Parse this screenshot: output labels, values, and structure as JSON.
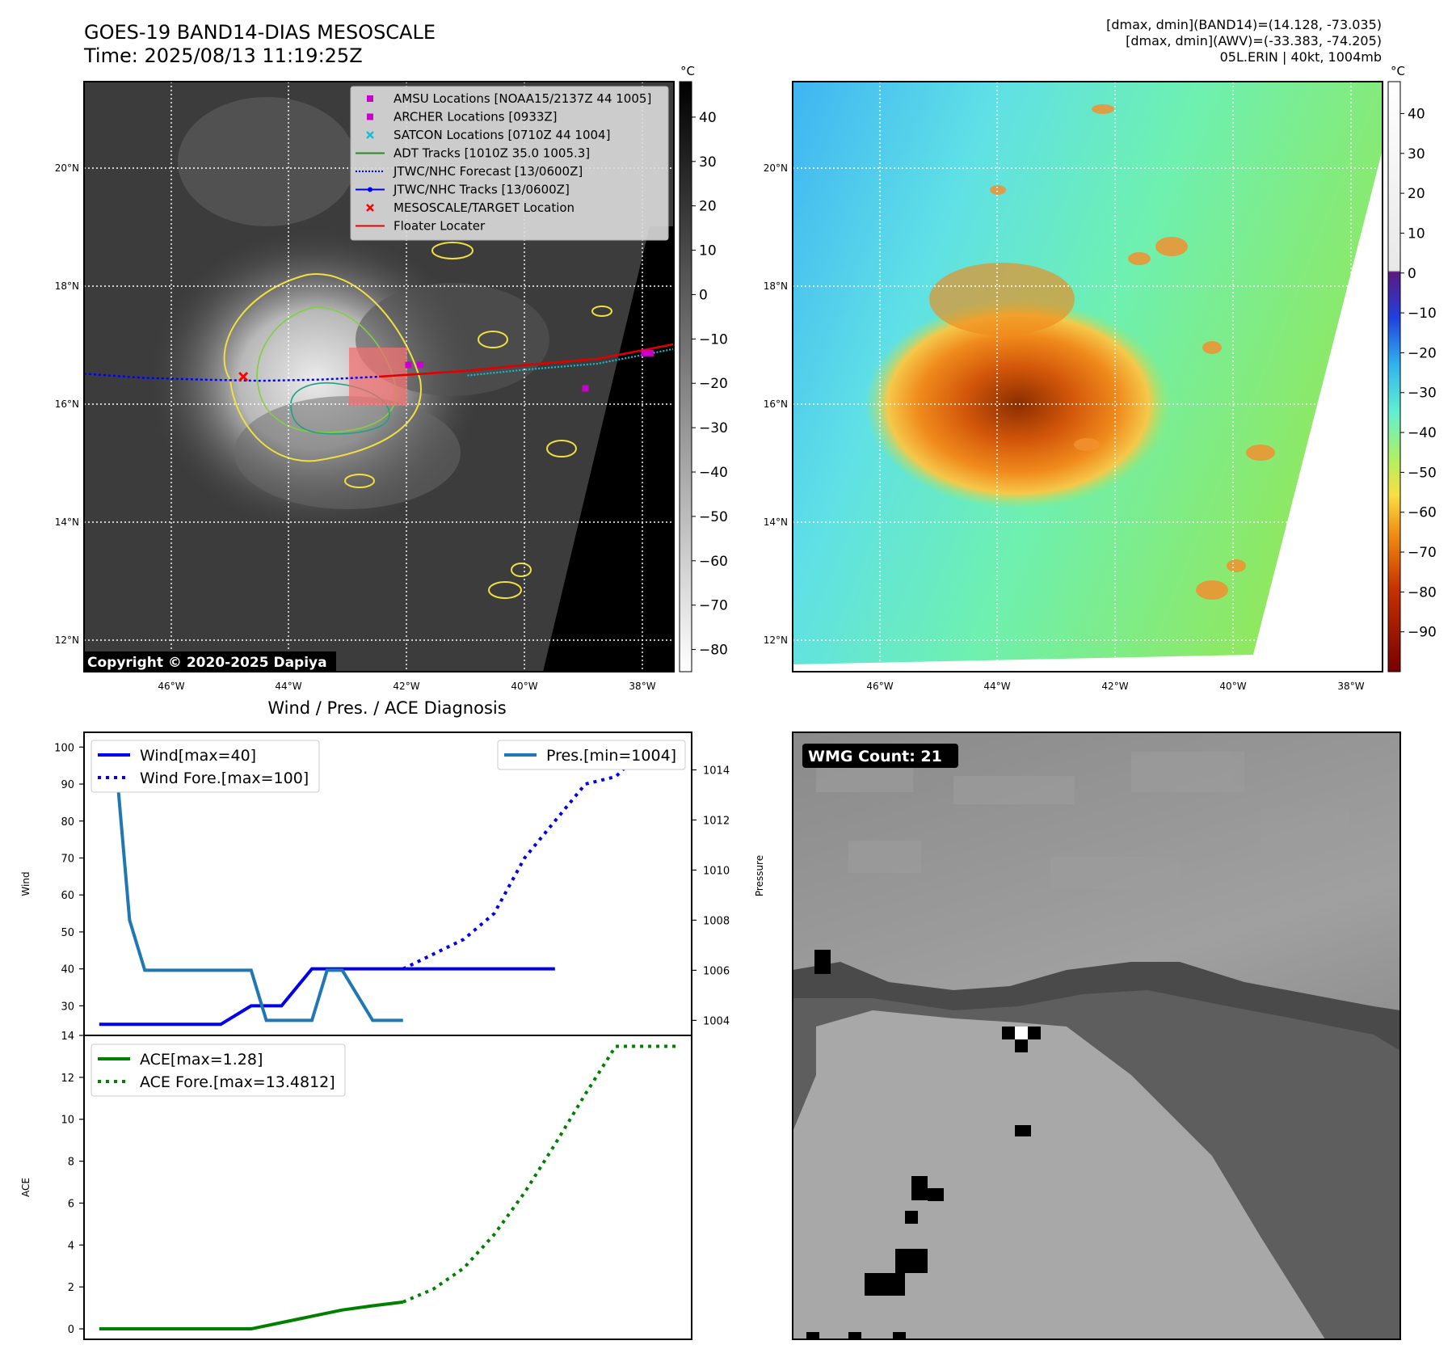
{
  "header": {
    "title_line1": "GOES-19 BAND14-DIAS MESOSCALE",
    "title_line2": "Time: 2025/08/13 11:19:25Z",
    "info_line1": "[dmax, dmin](BAND14)=(14.128, -73.035)",
    "info_line2": "[dmax, dmin](AWV)=(-33.383, -74.205)",
    "info_line3": "05L.ERIN | 40kt, 1004mb"
  },
  "copyright": "Copyright © 2020-2025 Dapiya",
  "wmg_count": "WMG Count: 21",
  "diag_title": "Wind / Pres. / ACE Diagnosis",
  "colors": {
    "wind": "#0000ee",
    "pressure": "#1f77b4",
    "ace": "#008000",
    "amsu": "#cc00cc",
    "archer": "#cc00cc",
    "satcon": "#17becf",
    "adt": "#228b22",
    "jtwc": "#0000ee",
    "target": "#ff0000",
    "floater": "#ee0000"
  },
  "chart_data": [
    {
      "id": "band14_ir",
      "type": "heatmap",
      "title": "GOES-19 BAND14-DIAS MESOSCALE",
      "colorbar_unit": "°C",
      "colorbar_ticks": [
        "40",
        "30",
        "20",
        "10",
        "0",
        "−10",
        "−20",
        "−30",
        "−40",
        "−50",
        "−60",
        "−70",
        "−80"
      ],
      "colorbar_range": [
        -85,
        48
      ],
      "lat_ticks": [
        "20°N",
        "18°N",
        "16°N",
        "14°N",
        "12°N"
      ],
      "lon_ticks": [
        "46°W",
        "44°W",
        "42°W",
        "40°W",
        "38°W"
      ],
      "lon_range": [
        -47.5,
        -37.5
      ],
      "lat_range": [
        11.5,
        21.5
      ],
      "legend": [
        {
          "label": "AMSU Locations [NOAA15/2137Z 44 1005]",
          "marker": "square",
          "color": "#cc00cc"
        },
        {
          "label": "ARCHER Locations [0933Z]",
          "marker": "square",
          "color": "#cc00cc"
        },
        {
          "label": "SATCON Locations [0710Z 44 1004]",
          "marker": "x",
          "color": "#17becf"
        },
        {
          "label": "ADT Tracks [1010Z 35.0 1005.3]",
          "marker": "line",
          "color": "#228b22"
        },
        {
          "label": "JTWC/NHC Forecast [13/0600Z]",
          "marker": "dotted",
          "color": "#0000ee"
        },
        {
          "label": "JTWC/NHC Tracks [13/0600Z]",
          "marker": "line-dot",
          "color": "#0000ee"
        },
        {
          "label": "MESOSCALE/TARGET Location",
          "marker": "x",
          "color": "#ff0000"
        },
        {
          "label": "Floater Locater",
          "marker": "line",
          "color": "#ee0000"
        }
      ],
      "target_location": {
        "lon": -44.8,
        "lat": 16.5
      },
      "forecast_track": {
        "lon": [
          -47.5,
          -46.5,
          -45.5,
          -44.5,
          -43.5,
          -42.5
        ],
        "lat": [
          16.55,
          16.48,
          16.45,
          16.43,
          16.45,
          16.5
        ]
      },
      "observed_track": {
        "lon": [
          -42.5,
          -41.0,
          -40.0,
          -38.8,
          -37.5
        ],
        "lat": [
          16.5,
          16.6,
          16.7,
          16.8,
          17.05
        ]
      },
      "amsu_points": {
        "lon": [
          -42.0,
          -41.8,
          -39.0,
          -38.0,
          -37.9
        ],
        "lat": [
          16.7,
          16.7,
          16.3,
          16.9,
          16.9
        ]
      }
    },
    {
      "id": "awv",
      "type": "heatmap",
      "colorbar_unit": "°C",
      "colorbar_ticks": [
        "40",
        "30",
        "20",
        "10",
        "0",
        "−10",
        "−20",
        "−30",
        "−40",
        "−50",
        "−60",
        "−70",
        "−80",
        "−90"
      ],
      "colorbar_range": [
        -100,
        48
      ],
      "lat_ticks": [
        "20°N",
        "18°N",
        "16°N",
        "14°N",
        "12°N"
      ],
      "lon_ticks": [
        "46°W",
        "44°W",
        "42°W",
        "40°W",
        "38°W"
      ]
    },
    {
      "id": "wind_pressure",
      "type": "line",
      "title": "Wind / Pres. / ACE Diagnosis",
      "ylabel": "Wind",
      "y2label": "Pressure",
      "ylim": [
        22,
        104
      ],
      "y2lim": [
        1003.4,
        1015.5
      ],
      "xlim": [
        -0.5,
        19.5
      ],
      "yticks": [
        30,
        40,
        50,
        60,
        70,
        80,
        90,
        100
      ],
      "y2ticks": [
        1004,
        1006,
        1008,
        1010,
        1012,
        1014
      ],
      "legend_left": [
        "Wind[max=40]",
        "Wind Fore.[max=100]"
      ],
      "legend_right": [
        "Pres.[min=1004]"
      ],
      "series": [
        {
          "name": "Wind[max=40]",
          "style": "solid",
          "axis": "left",
          "x": [
            0,
            1,
            2,
            3,
            4,
            5,
            6,
            7,
            8,
            9,
            10,
            11,
            12,
            13,
            14,
            15
          ],
          "values": [
            25,
            25,
            25,
            25,
            25,
            30,
            30,
            40,
            40,
            40,
            40,
            40,
            40,
            40,
            40,
            40
          ]
        },
        {
          "name": "Wind Fore.[max=100]",
          "style": "dotted",
          "axis": "left",
          "x": [
            10,
            12,
            13,
            14,
            16,
            17,
            18,
            19
          ],
          "values": [
            40,
            48,
            55,
            70,
            90,
            92,
            100,
            100
          ]
        },
        {
          "name": "Pres.[min=1004]",
          "style": "solid",
          "axis": "right",
          "x": [
            0,
            0.5,
            1,
            1.5,
            2,
            3,
            4,
            5,
            5.5,
            6,
            7,
            7.5,
            8,
            9,
            10
          ],
          "values": [
            1015,
            1015,
            1008,
            1006,
            1006,
            1006,
            1006,
            1006,
            1004,
            1004,
            1004,
            1006,
            1006,
            1004,
            1004
          ]
        }
      ]
    },
    {
      "id": "ace",
      "type": "line",
      "ylabel": "ACE",
      "ylim": [
        -0.5,
        14
      ],
      "xlim": [
        -0.5,
        19.5
      ],
      "yticks": [
        0,
        2,
        4,
        6,
        8,
        10,
        12,
        14
      ],
      "legend": [
        "ACE[max=1.28]",
        "ACE Fore.[max=13.4812]"
      ],
      "series": [
        {
          "name": "ACE[max=1.28]",
          "style": "solid",
          "x": [
            0,
            1,
            2,
            3,
            4,
            5,
            6,
            7,
            8,
            9,
            10
          ],
          "values": [
            0,
            0,
            0,
            0,
            0,
            0,
            0.3,
            0.6,
            0.9,
            1.1,
            1.28
          ]
        },
        {
          "name": "ACE Fore.[max=13.4812]",
          "style": "dotted",
          "x": [
            10,
            11,
            12,
            13,
            14,
            15,
            16,
            17,
            18,
            19
          ],
          "values": [
            1.28,
            1.9,
            2.9,
            4.5,
            6.5,
            8.8,
            11.2,
            13.4812,
            13.4812,
            13.4812
          ]
        }
      ]
    },
    {
      "id": "wmg",
      "type": "heatmap",
      "label": "WMG Count: 21"
    }
  ]
}
